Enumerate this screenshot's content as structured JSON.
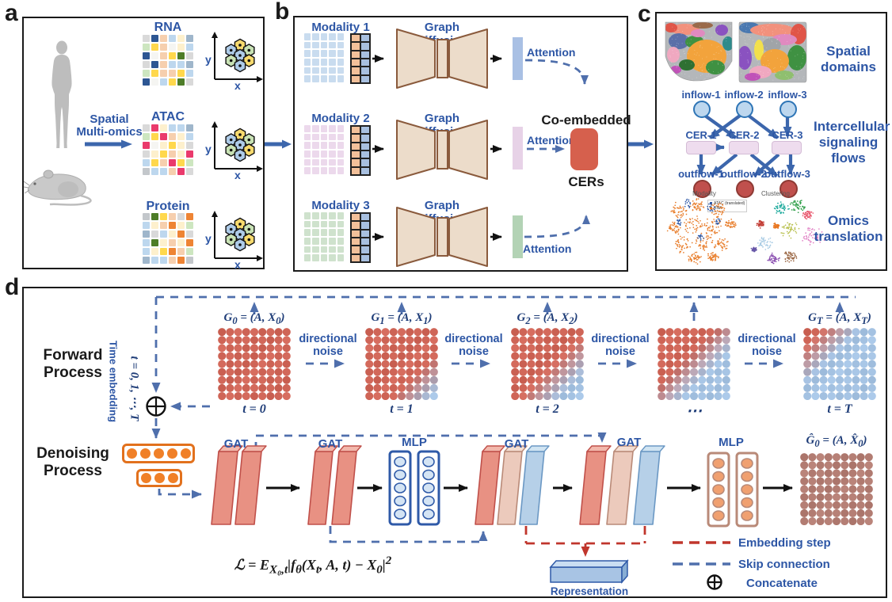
{
  "colors": {
    "blue_label": "#2d56a5",
    "math_navy": "#1f3d78",
    "dash_blue": "#4f6fac",
    "dash_red": "#c0362c",
    "arrow_blue": "#3c66ac",
    "node_red": "#cf6557",
    "node_blue": "#a4c2e2",
    "node_out": "#b27c72",
    "cer_red": "#d6604d",
    "orange": "#f08028",
    "autoencoder_tan": "#ecdcca",
    "autoencoder_stroke": "#8a5a3c"
  },
  "a": {
    "tag": "a",
    "flow_label_lines": [
      "Spatial",
      "Multi-omics"
    ],
    "axis_x": "x",
    "axis_y": "y",
    "palette": {
      "g": "#d9d9d9",
      "dg": "#c3c7cb",
      "n": "#2d5693",
      "p": "#f6cfae",
      "lb": "#bdd7ee",
      "cr": "#fdf0cd",
      "bg": "#9fb6cb",
      "lg": "#cde6c0",
      "y": "#ffd84d",
      "gr": "#4e7d28",
      "w": "#f5f5f2",
      "mg": "#ea3a6c",
      "or": "#ee8434"
    },
    "hex_colors": [
      "#f7da6e",
      "#aecbe8",
      "#c8e2b4",
      "#aecbe8",
      "#c8e2b4",
      "#f7da6e",
      "#aecbe8"
    ],
    "rows": [
      {
        "title": "RNA",
        "cells": [
          "g",
          "n",
          "p",
          "lb",
          "cr",
          "bg",
          "lg",
          "y",
          "p",
          "w",
          "cr",
          "lb",
          "n",
          "w",
          "p",
          "y",
          "gr",
          "g",
          "g",
          "n",
          "p",
          "lb",
          "lb",
          "bg",
          "lg",
          "y",
          "p",
          "p",
          "y",
          "lb",
          "n",
          "w",
          "lb",
          "y",
          "gr",
          "g"
        ]
      },
      {
        "title": "ATAC",
        "cells": [
          "g",
          "mg",
          "cr",
          "lb",
          "lb",
          "bg",
          "lg",
          "y",
          "mg",
          "p",
          "cr",
          "lb",
          "mg",
          "w",
          "cr",
          "y",
          "cr",
          "g",
          "g",
          "cr",
          "y",
          "p",
          "cr",
          "mg",
          "lb",
          "y",
          "p",
          "mg",
          "y",
          "lg",
          "dg",
          "lb",
          "lb",
          "p",
          "mg",
          "g"
        ]
      },
      {
        "title": "Protein",
        "cells": [
          "dg",
          "gr",
          "y",
          "p",
          "g",
          "or",
          "lb",
          "cr",
          "p",
          "or",
          "cr",
          "lg",
          "bg",
          "g",
          "lb",
          "cr",
          "or",
          "g",
          "lb",
          "gr",
          "cr",
          "p",
          "cr",
          "or",
          "lb",
          "cr",
          "y",
          "or",
          "p",
          "lg",
          "bg",
          "lb",
          "lb",
          "p",
          "or",
          "dg"
        ]
      }
    ]
  },
  "b": {
    "tag": "b",
    "diffusion_label": "Graph Diffusion",
    "attention_label": "Attention",
    "co_embedded_label": "Co-embedded",
    "cers_label": "CERs",
    "rows": [
      {
        "label": "Modality 1",
        "grid_color": "#c9dcef",
        "bar_color": "#a9c0e4",
        "vec_left": "#f2c09a",
        "vec_right": "#a8c0e0"
      },
      {
        "label": "Modality 2",
        "grid_color": "#ecd9ec",
        "bar_color": "#e7d2e7",
        "vec_left": "#f2c09a",
        "vec_right": "#a8c0e0"
      },
      {
        "label": "Modality 3",
        "grid_color": "#cfe2cd",
        "bar_color": "#b3d3b5",
        "vec_left": "#f2c09a",
        "vec_right": "#a8c0e0"
      }
    ]
  },
  "c": {
    "tag": "c",
    "spatial_domains_lines": [
      "Spatial",
      "domains"
    ],
    "signaling_lines": [
      "Intercellular",
      "signaling",
      "flows"
    ],
    "omics_lines": [
      "Omics",
      "translation"
    ],
    "inflows": [
      "inflow-1",
      "inflow-2",
      "inflow-3"
    ],
    "cers": [
      "CER-1",
      "CER-2",
      "CER-3"
    ],
    "outflows": [
      "outflow-1",
      "outflow-2",
      "outflow-3"
    ],
    "scatter_left": {
      "title": "Modality",
      "legend": [
        {
          "label": "ATAC (translated)",
          "color": "#2f5aa8"
        },
        {
          "label": "RNA",
          "color": "#e87d2b"
        }
      ]
    },
    "scatter_right": {
      "title": "Clustering",
      "palette": [
        "#18a89a",
        "#2e9e48",
        "#c23b33",
        "#e87722",
        "#b8c04e",
        "#df7cc2",
        "#a8cbe4",
        "#8a4fb0",
        "#96603c",
        "#6858a8",
        "#e8566c"
      ]
    },
    "map_palette": [
      "#b4b7ba",
      "#f2a33c",
      "#3f9142",
      "#5b6fa8",
      "#f0a8c0",
      "#f2917d",
      "#e05548",
      "#8a52c0",
      "#c052b8",
      "#2e8b8b",
      "#2f7032",
      "#9a6a4a",
      "#f2e04c",
      "#4a78b0",
      "#8fbf6f",
      "#a0a4a8",
      "#e08ac0"
    ]
  },
  "d": {
    "tag": "d",
    "forward_lines": [
      "Forward",
      "Process"
    ],
    "denoise_lines": [
      "Denoising",
      "Process"
    ],
    "time_embedding_label": "Time embedding",
    "time_range_label": "t = 0, 1, ⋯, T",
    "noise_line1": "directional",
    "noise_line2": "noise",
    "gat_label": "GAT",
    "mlp_label": "MLP",
    "graphs": [
      {
        "formula_html": "G<sub>0</sub> = (A, X<sub>0</sub>)",
        "t_html": "t = 0",
        "noise": 0
      },
      {
        "formula_html": "G<sub>1</sub> = (A, X<sub>1</sub>)",
        "t_html": "t = 1",
        "noise": 0.38
      },
      {
        "formula_html": "G<sub>2</sub> = (A, X<sub>2</sub>)",
        "t_html": "t = 2",
        "noise": 0.52
      },
      {
        "formula_html": "",
        "t_html": "⋯",
        "noise": 0.7
      },
      {
        "formula_html": "G<sub>T</sub> = (A, X<sub>T</sub>)",
        "t_html": "t = T",
        "noise": 1.0
      }
    ],
    "loss_html": "ℒ = E<sub>X₀,t</sub>|f<sub>θ</sub>(X<sub>t</sub>, A, t) − X<sub>0</sub>|<sup>2</sup>",
    "output_formula_html": "Ĝ<sub>0</sub> = (A, X̂<sub>0</sub>)",
    "representation_label": "Representation",
    "legend": [
      {
        "label": "Embedding step"
      },
      {
        "label": "Skip connection"
      },
      {
        "label": "Concatenate"
      }
    ]
  }
}
